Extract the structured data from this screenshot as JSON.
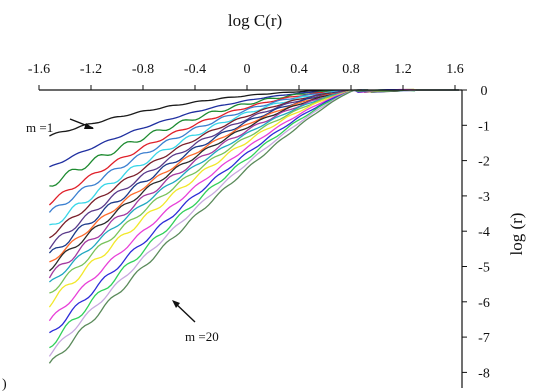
{
  "chart_data": {
    "type": "line",
    "title": "log C(r)",
    "xlabel": "log C(r)",
    "ylabel": "log (r)",
    "x_axis_position": "top",
    "y_axis_position": "right",
    "xlim": [
      -1.6,
      1.6
    ],
    "ylim": [
      -8,
      0
    ],
    "x_ticks": [
      "-1.6",
      "-1.2",
      "-0.8",
      "-0.4",
      "0",
      "0.4",
      "0.8",
      "1.2",
      "1.6"
    ],
    "y_ticks": [
      "0",
      "-1",
      "-2",
      "-3",
      "-4",
      "-5",
      "-6",
      "-7",
      "-8"
    ],
    "grid": false,
    "legend": "none",
    "annotations": [
      {
        "text": "m =1",
        "x": -1.5,
        "y": -1.15
      },
      {
        "text": "m =20",
        "x": -1.06,
        "y": -5.95
      }
    ],
    "partial_text": ")",
    "series": [
      {
        "start": -1.3,
        "color": "#1a1a1a"
      },
      {
        "start": -2.2,
        "color": "#1f2fa0"
      },
      {
        "start": -2.7,
        "color": "#1c8a2f"
      },
      {
        "start": -3.2,
        "color": "#e0202a"
      },
      {
        "start": -3.5,
        "color": "#3a7fd0"
      },
      {
        "start": -3.9,
        "color": "#38d6e8"
      },
      {
        "start": -4.15,
        "color": "#7a1f2a"
      },
      {
        "start": -4.45,
        "color": "#5a3a8a"
      },
      {
        "start": -4.7,
        "color": "#1b3a8a"
      },
      {
        "start": -4.9,
        "color": "#ff6a2a"
      },
      {
        "start": -5.05,
        "color": "#2a2a2a"
      },
      {
        "start": -5.3,
        "color": "#a33aa0"
      },
      {
        "start": -5.5,
        "color": "#20a8c0"
      },
      {
        "start": -5.75,
        "color": "#78c25a"
      },
      {
        "start": -6.05,
        "color": "#f2e82a"
      },
      {
        "start": -6.55,
        "color": "#e840d8"
      },
      {
        "start": -6.95,
        "color": "#2c2cd8"
      },
      {
        "start": -7.25,
        "color": "#30d05a"
      },
      {
        "start": -7.5,
        "color": "#c8a8e0"
      },
      {
        "start": -7.8,
        "color": "#5a8a5a"
      }
    ]
  }
}
